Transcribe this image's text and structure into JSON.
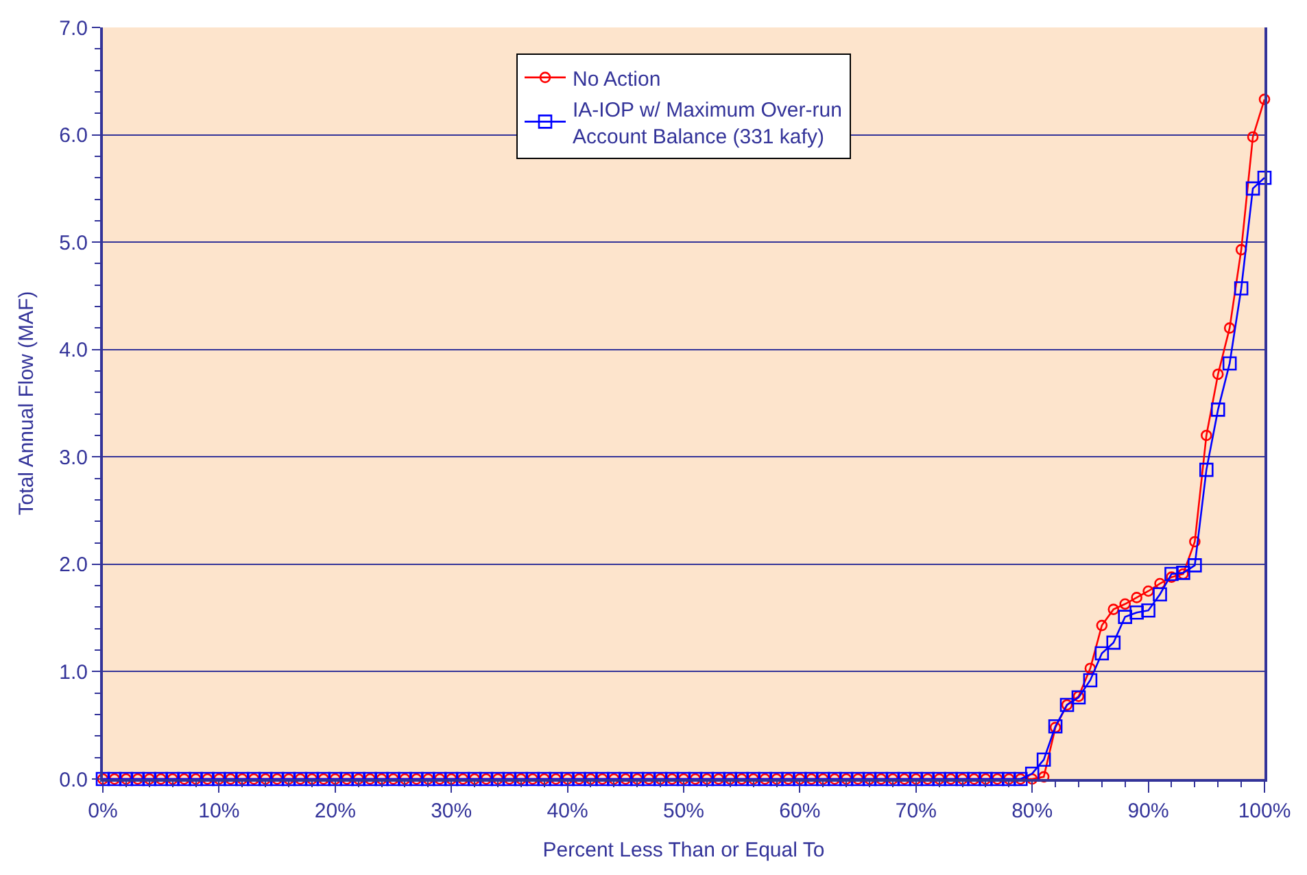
{
  "chart_data": {
    "type": "line",
    "xlabel": "Percent Less Than or Equal To",
    "ylabel": "Total Annual Flow (MAF)",
    "x": [
      0,
      1,
      2,
      3,
      4,
      5,
      6,
      7,
      8,
      9,
      10,
      11,
      12,
      13,
      14,
      15,
      16,
      17,
      18,
      19,
      20,
      21,
      22,
      23,
      24,
      25,
      26,
      27,
      28,
      29,
      30,
      31,
      32,
      33,
      34,
      35,
      36,
      37,
      38,
      39,
      40,
      41,
      42,
      43,
      44,
      45,
      46,
      47,
      48,
      49,
      50,
      51,
      52,
      53,
      54,
      55,
      56,
      57,
      58,
      59,
      60,
      61,
      62,
      63,
      64,
      65,
      66,
      67,
      68,
      69,
      70,
      71,
      72,
      73,
      74,
      75,
      76,
      77,
      78,
      79,
      80,
      81,
      82,
      83,
      84,
      85,
      86,
      87,
      88,
      89,
      90,
      91,
      92,
      93,
      94,
      95,
      96,
      97,
      98,
      99,
      100
    ],
    "series": [
      {
        "name": "No Action",
        "color": "#ff0000",
        "marker": "circle",
        "values": [
          0,
          0,
          0,
          0,
          0,
          0,
          0,
          0,
          0,
          0,
          0,
          0,
          0,
          0,
          0,
          0,
          0,
          0,
          0,
          0,
          0,
          0,
          0,
          0,
          0,
          0,
          0,
          0,
          0,
          0,
          0,
          0,
          0,
          0,
          0,
          0,
          0,
          0,
          0,
          0,
          0,
          0,
          0,
          0,
          0,
          0,
          0,
          0,
          0,
          0,
          0,
          0,
          0,
          0,
          0,
          0,
          0,
          0,
          0,
          0,
          0,
          0,
          0,
          0,
          0,
          0,
          0,
          0,
          0,
          0,
          0,
          0,
          0,
          0,
          0,
          0,
          0,
          0,
          0,
          0,
          0,
          0.02,
          0.48,
          0.69,
          0.77,
          1.03,
          1.43,
          1.58,
          1.63,
          1.69,
          1.75,
          1.82,
          1.88,
          1.91,
          2.21,
          3.2,
          3.77,
          4.2,
          4.93,
          5.98,
          6.33
        ]
      },
      {
        "name": "IA-IOP w/ Maximum Over-run\nAccount Balance (331 kafy)",
        "color": "#0000ff",
        "marker": "square",
        "values": [
          0,
          0,
          0,
          0,
          0,
          0,
          0,
          0,
          0,
          0,
          0,
          0,
          0,
          0,
          0,
          0,
          0,
          0,
          0,
          0,
          0,
          0,
          0,
          0,
          0,
          0,
          0,
          0,
          0,
          0,
          0,
          0,
          0,
          0,
          0,
          0,
          0,
          0,
          0,
          0,
          0,
          0,
          0,
          0,
          0,
          0,
          0,
          0,
          0,
          0,
          0,
          0,
          0,
          0,
          0,
          0,
          0,
          0,
          0,
          0,
          0,
          0,
          0,
          0,
          0,
          0,
          0,
          0,
          0,
          0,
          0,
          0,
          0,
          0,
          0,
          0,
          0,
          0,
          0,
          0,
          0.05,
          0.18,
          0.49,
          0.69,
          0.76,
          0.92,
          1.17,
          1.27,
          1.51,
          1.55,
          1.57,
          1.72,
          1.91,
          1.92,
          1.99,
          2.88,
          3.44,
          3.87,
          4.57,
          5.5,
          5.6
        ]
      }
    ],
    "xlim": [
      0,
      100
    ],
    "xticks": [
      {
        "value": 0,
        "label": "0%"
      },
      {
        "value": 10,
        "label": "10%"
      },
      {
        "value": 20,
        "label": "20%"
      },
      {
        "value": 30,
        "label": "30%"
      },
      {
        "value": 40,
        "label": "40%"
      },
      {
        "value": 50,
        "label": "50%"
      },
      {
        "value": 60,
        "label": "60%"
      },
      {
        "value": 70,
        "label": "70%"
      },
      {
        "value": 80,
        "label": "80%"
      },
      {
        "value": 90,
        "label": "90%"
      },
      {
        "value": 100,
        "label": "100%"
      }
    ],
    "ylim": [
      0,
      7
    ],
    "yticks": [
      {
        "value": 0,
        "label": "0.0"
      },
      {
        "value": 1,
        "label": "1.0"
      },
      {
        "value": 2,
        "label": "2.0"
      },
      {
        "value": 3,
        "label": "3.0"
      },
      {
        "value": 4,
        "label": "4.0"
      },
      {
        "value": 5,
        "label": "5.0"
      },
      {
        "value": 6,
        "label": "6.0"
      },
      {
        "value": 7,
        "label": "7.0"
      }
    ],
    "grid": "y",
    "legend": "top",
    "line_style": "solid"
  }
}
